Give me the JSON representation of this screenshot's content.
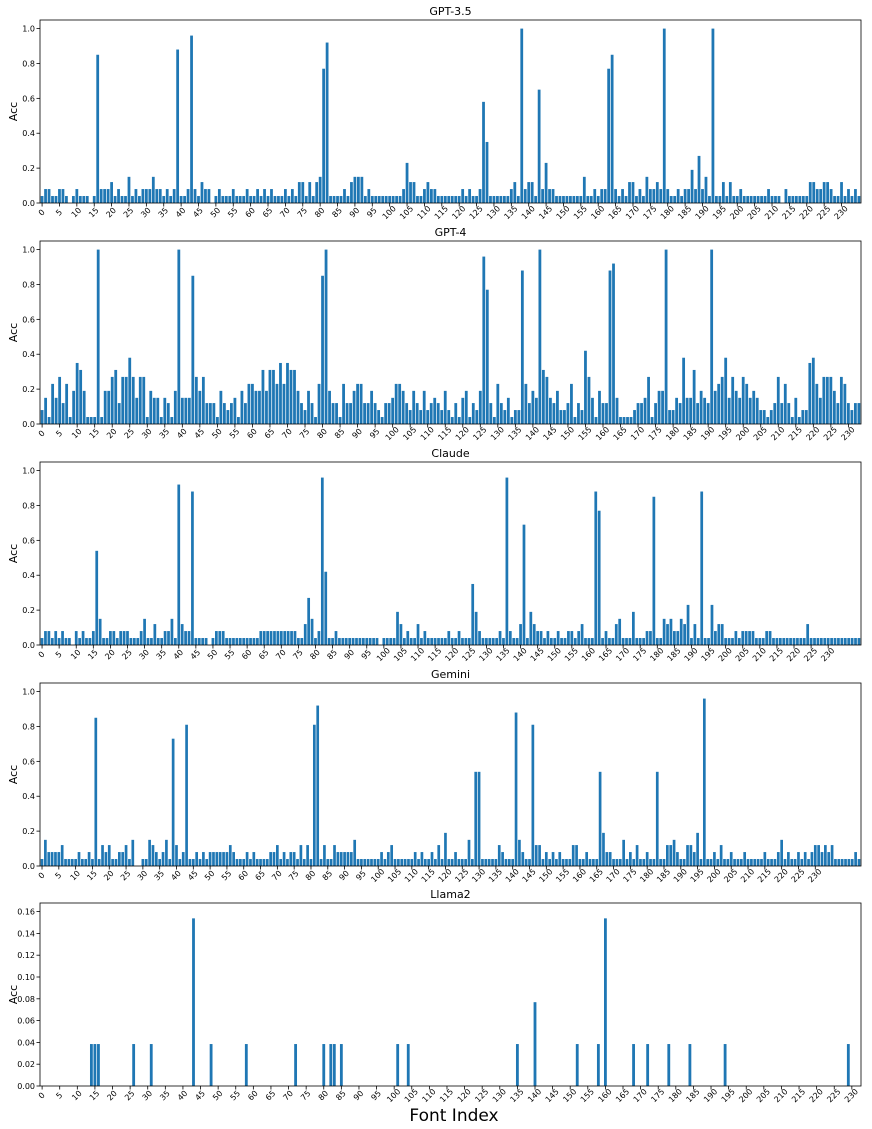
{
  "figure": {
    "xlabel": "Font Index",
    "bar_color": "#1f77b4",
    "xticks": [
      0,
      5,
      10,
      15,
      20,
      25,
      30,
      35,
      40,
      45,
      50,
      55,
      60,
      65,
      70,
      75,
      80,
      85,
      90,
      95,
      100,
      105,
      110,
      115,
      120,
      125,
      130,
      135,
      140,
      145,
      150,
      155,
      160,
      165,
      170,
      175,
      180,
      185,
      190,
      195,
      200,
      205,
      210,
      215,
      220,
      225,
      230
    ]
  },
  "chart_data": [
    {
      "type": "bar",
      "title": "GPT-3.5",
      "ylabel": "Acc",
      "ylim": [
        0,
        1.0
      ],
      "yticks": [
        0.0,
        0.2,
        0.4,
        0.6,
        0.8,
        1.0
      ],
      "x_start": 0,
      "values": [
        0.04,
        0.08,
        0.08,
        0.04,
        0.04,
        0.08,
        0.08,
        0.04,
        0,
        0.04,
        0.08,
        0.04,
        0.04,
        0.04,
        0,
        0.04,
        0.85,
        0.08,
        0.08,
        0.08,
        0.12,
        0.04,
        0.08,
        0.04,
        0.04,
        0.15,
        0.04,
        0.08,
        0.04,
        0.08,
        0.08,
        0.08,
        0.15,
        0.08,
        0.08,
        0.04,
        0.08,
        0.04,
        0.08,
        0.88,
        0.04,
        0.04,
        0.08,
        0.96,
        0.08,
        0.04,
        0.12,
        0.08,
        0.08,
        0,
        0.04,
        0.08,
        0.04,
        0.04,
        0.04,
        0.08,
        0.04,
        0.04,
        0.04,
        0.08,
        0.04,
        0.04,
        0.08,
        0.04,
        0.08,
        0.04,
        0.08,
        0.04,
        0.04,
        0.04,
        0.08,
        0.04,
        0.08,
        0.04,
        0.12,
        0.12,
        0.04,
        0.12,
        0.04,
        0.12,
        0.15,
        0.77,
        0.92,
        0.04,
        0.04,
        0.04,
        0.04,
        0.08,
        0.04,
        0.12,
        0.15,
        0.15,
        0.15,
        0.04,
        0.08,
        0.04,
        0.04,
        0.04,
        0.04,
        0.04,
        0.04,
        0.04,
        0.04,
        0.04,
        0.08,
        0.23,
        0.12,
        0.12,
        0.04,
        0.04,
        0.08,
        0.12,
        0.08,
        0.08,
        0.04,
        0.04,
        0.04,
        0.04,
        0.04,
        0.04,
        0.04,
        0.08,
        0.04,
        0.08,
        0.04,
        0.04,
        0.08,
        0.58,
        0.35,
        0.04,
        0.04,
        0.04,
        0.04,
        0.04,
        0.04,
        0.08,
        0.12,
        0.04,
        1.0,
        0.08,
        0.12,
        0.12,
        0.04,
        0.65,
        0.08,
        0.23,
        0.08,
        0.08,
        0.04,
        0.04,
        0.04,
        0.04,
        0.04,
        0.04,
        0.04,
        0.04,
        0.15,
        0.04,
        0.04,
        0.08,
        0.04,
        0.08,
        0.08,
        0.77,
        0.85,
        0.08,
        0.04,
        0.08,
        0.04,
        0.12,
        0.12,
        0.04,
        0.08,
        0.04,
        0.15,
        0.08,
        0.08,
        0.12,
        0.08,
        1.0,
        0.08,
        0.04,
        0.04,
        0.08,
        0.04,
        0.08,
        0.08,
        0.19,
        0.08,
        0.27,
        0.08,
        0.15,
        0.04,
        1.0,
        0.04,
        0.04,
        0.12,
        0.04,
        0.12,
        0.04,
        0.04,
        0.08,
        0.04,
        0.04,
        0.04,
        0.04,
        0.04,
        0.04,
        0.04,
        0.08,
        0.04,
        0.04,
        0.04,
        0,
        0.08,
        0.04,
        0.04,
        0.04,
        0.04,
        0.04,
        0.04,
        0.12,
        0.12,
        0.08,
        0.08,
        0.12,
        0.12,
        0.08,
        0.04,
        0.04,
        0.12,
        0.04,
        0.08,
        0.04,
        0.08,
        0.04
      ]
    },
    {
      "type": "bar",
      "title": "GPT-4",
      "ylabel": "Acc",
      "ylim": [
        0,
        1.0
      ],
      "yticks": [
        0.0,
        0.2,
        0.4,
        0.6,
        0.8,
        1.0
      ],
      "x_start": 0,
      "values": [
        0.08,
        0.15,
        0.04,
        0.23,
        0.15,
        0.27,
        0.12,
        0.23,
        0.04,
        0.19,
        0.35,
        0.31,
        0.19,
        0.04,
        0.04,
        0.04,
        1.0,
        0.04,
        0.19,
        0.19,
        0.27,
        0.31,
        0.12,
        0.27,
        0.27,
        0.38,
        0.27,
        0.15,
        0.27,
        0.27,
        0.04,
        0.19,
        0.15,
        0.15,
        0.04,
        0.15,
        0.12,
        0.04,
        0.19,
        1.0,
        0.15,
        0.15,
        0.15,
        0.85,
        0.27,
        0.19,
        0.27,
        0.12,
        0.12,
        0.12,
        0.04,
        0.19,
        0.12,
        0.08,
        0.12,
        0.15,
        0.04,
        0.19,
        0.12,
        0.23,
        0.23,
        0.19,
        0.19,
        0.31,
        0.19,
        0.31,
        0.31,
        0.23,
        0.35,
        0.23,
        0.35,
        0.31,
        0.31,
        0.19,
        0.12,
        0.08,
        0.19,
        0.12,
        0.04,
        0.23,
        0.85,
        1.0,
        0.19,
        0.12,
        0.12,
        0.04,
        0.23,
        0.12,
        0.12,
        0.19,
        0.23,
        0.23,
        0.12,
        0.12,
        0.19,
        0.12,
        0.08,
        0.04,
        0.12,
        0.12,
        0.15,
        0.23,
        0.23,
        0.19,
        0.12,
        0.08,
        0.19,
        0.12,
        0.08,
        0.19,
        0.08,
        0.12,
        0.15,
        0.12,
        0.08,
        0.19,
        0.08,
        0.04,
        0.12,
        0.04,
        0.15,
        0.19,
        0.04,
        0.12,
        0.08,
        0.19,
        0.96,
        0.77,
        0.12,
        0.04,
        0.23,
        0.12,
        0.08,
        0.15,
        0.04,
        0.08,
        0.08,
        0.88,
        0.23,
        0.12,
        0.19,
        0.15,
        1.0,
        0.31,
        0.27,
        0.15,
        0.12,
        0.19,
        0.08,
        0.08,
        0.12,
        0.23,
        0.04,
        0.12,
        0.08,
        0.42,
        0.27,
        0.15,
        0.04,
        0.19,
        0.12,
        0.12,
        0.88,
        0.92,
        0.15,
        0.04,
        0.04,
        0.04,
        0.04,
        0.08,
        0.12,
        0.12,
        0.15,
        0.27,
        0.04,
        0.12,
        0.19,
        0.19,
        1.0,
        0.08,
        0.08,
        0.15,
        0.12,
        0.38,
        0.15,
        0.15,
        0.31,
        0.12,
        0.19,
        0.15,
        0.12,
        1.0,
        0.19,
        0.23,
        0.27,
        0.38,
        0.15,
        0.27,
        0.19,
        0.15,
        0.27,
        0.23,
        0.15,
        0.19,
        0.15,
        0.08,
        0.08,
        0.04,
        0.08,
        0.12,
        0.27,
        0.12,
        0.23,
        0.12,
        0.04,
        0.15,
        0.04,
        0.08,
        0.08,
        0.35,
        0.38,
        0.23,
        0.15,
        0.27,
        0.27,
        0.27,
        0.19,
        0.12,
        0.27,
        0.23,
        0.12,
        0.08,
        0.12,
        0.12
      ]
    },
    {
      "type": "bar",
      "title": "Claude",
      "ylabel": "Acc",
      "ylim": [
        0,
        1.0
      ],
      "yticks": [
        0.0,
        0.2,
        0.4,
        0.6,
        0.8,
        1.0
      ],
      "x_start": 0,
      "values": [
        0.04,
        0.08,
        0.08,
        0.04,
        0.08,
        0.04,
        0.08,
        0.04,
        0.04,
        0,
        0.08,
        0.04,
        0.08,
        0.04,
        0.04,
        0.08,
        0.54,
        0.15,
        0.04,
        0.04,
        0.08,
        0.08,
        0.04,
        0.08,
        0.08,
        0.08,
        0.04,
        0.04,
        0.04,
        0.08,
        0.15,
        0.04,
        0.04,
        0.12,
        0.04,
        0.04,
        0.08,
        0.08,
        0.15,
        0.04,
        0.92,
        0.12,
        0.08,
        0.08,
        0.88,
        0.04,
        0.04,
        0.04,
        0.04,
        0,
        0.04,
        0.08,
        0.08,
        0.08,
        0.04,
        0.04,
        0.04,
        0.04,
        0.04,
        0.04,
        0.04,
        0.04,
        0.04,
        0.04,
        0.08,
        0.08,
        0.08,
        0.08,
        0.08,
        0.08,
        0.08,
        0.08,
        0.08,
        0.08,
        0.08,
        0.04,
        0.04,
        0.12,
        0.27,
        0.15,
        0.04,
        0.08,
        0.96,
        0.42,
        0.04,
        0.04,
        0.08,
        0.04,
        0.04,
        0.04,
        0.04,
        0.04,
        0.04,
        0.04,
        0.04,
        0.04,
        0.04,
        0.04,
        0.04,
        0,
        0.04,
        0.04,
        0.04,
        0.04,
        0.19,
        0.12,
        0.04,
        0.08,
        0.04,
        0.04,
        0.12,
        0.04,
        0.08,
        0.04,
        0.04,
        0.04,
        0.04,
        0.04,
        0.04,
        0.08,
        0.04,
        0.04,
        0.08,
        0.04,
        0.04,
        0.04,
        0.35,
        0.19,
        0.08,
        0.04,
        0.04,
        0.04,
        0.04,
        0.04,
        0.08,
        0.04,
        0.96,
        0.08,
        0.04,
        0.04,
        0.12,
        0.69,
        0.04,
        0.19,
        0.12,
        0.08,
        0.08,
        0.04,
        0.08,
        0.04,
        0.04,
        0.08,
        0.04,
        0.04,
        0.08,
        0.08,
        0.04,
        0.08,
        0.12,
        0.04,
        0.04,
        0.04,
        0.88,
        0.77,
        0.04,
        0.08,
        0.04,
        0.04,
        0.12,
        0.15,
        0.04,
        0.04,
        0.04,
        0.19,
        0.04,
        0.04,
        0.04,
        0.08,
        0.08,
        0.85,
        0.04,
        0.04,
        0.15,
        0.12,
        0.15,
        0.08,
        0.08,
        0.15,
        0.12,
        0.23,
        0.04,
        0.12,
        0.04,
        0.88,
        0.04,
        0.04,
        0.23,
        0.08,
        0.12,
        0.12,
        0.04,
        0.04,
        0.04,
        0.08,
        0.04,
        0.08,
        0.08,
        0.08,
        0.08,
        0.04,
        0.04,
        0.04,
        0.08,
        0.08,
        0.04,
        0.04,
        0.04,
        0.04,
        0.04,
        0.04,
        0.04,
        0.04,
        0.04,
        0.04,
        0.12,
        0.04,
        0.04,
        0.04,
        0.04,
        0.04,
        0.04,
        0.04,
        0.04,
        0.04,
        0.04,
        0.04,
        0.04,
        0.04,
        0.04,
        0.04
      ]
    },
    {
      "type": "bar",
      "title": "Gemini",
      "ylabel": "Acc",
      "ylim": [
        0,
        1.0
      ],
      "yticks": [
        0.0,
        0.2,
        0.4,
        0.6,
        0.8,
        1.0
      ],
      "x_start": 0,
      "values": [
        0.04,
        0.15,
        0.08,
        0.08,
        0.08,
        0.08,
        0.12,
        0.04,
        0.04,
        0.04,
        0.04,
        0.08,
        0.04,
        0.04,
        0.08,
        0.04,
        0.85,
        0.04,
        0.12,
        0.08,
        0.12,
        0.04,
        0.04,
        0.08,
        0.08,
        0.12,
        0.04,
        0.15,
        0,
        0,
        0.04,
        0.04,
        0.15,
        0.12,
        0.08,
        0.04,
        0.08,
        0.15,
        0.04,
        0.73,
        0.12,
        0.04,
        0.08,
        0.81,
        0.04,
        0.04,
        0.08,
        0.04,
        0.08,
        0.04,
        0.08,
        0.08,
        0.08,
        0.08,
        0.08,
        0.08,
        0.12,
        0.08,
        0.04,
        0.04,
        0.04,
        0.08,
        0.04,
        0.08,
        0.04,
        0.04,
        0.04,
        0.04,
        0.08,
        0.08,
        0.12,
        0.04,
        0.08,
        0.04,
        0.08,
        0.08,
        0.04,
        0.12,
        0.04,
        0.12,
        0.04,
        0.81,
        0.92,
        0.04,
        0.12,
        0.04,
        0.04,
        0.12,
        0.08,
        0.08,
        0.08,
        0.08,
        0.08,
        0.15,
        0.04,
        0.04,
        0.04,
        0.04,
        0.04,
        0.04,
        0.04,
        0.08,
        0.04,
        0.08,
        0.12,
        0.04,
        0.04,
        0.04,
        0.04,
        0.04,
        0.04,
        0.08,
        0.04,
        0.08,
        0.04,
        0.04,
        0.08,
        0.04,
        0.12,
        0.04,
        0.19,
        0.04,
        0.04,
        0.08,
        0.04,
        0.04,
        0.04,
        0.15,
        0.04,
        0.54,
        0.54,
        0.04,
        0.04,
        0.04,
        0.04,
        0.04,
        0.12,
        0.08,
        0.04,
        0.04,
        0.04,
        0.88,
        0.15,
        0.08,
        0.04,
        0.04,
        0.81,
        0.12,
        0.12,
        0.04,
        0.08,
        0.04,
        0.08,
        0.04,
        0.08,
        0.04,
        0.04,
        0.04,
        0.12,
        0.12,
        0.04,
        0.04,
        0.08,
        0.04,
        0.04,
        0.04,
        0.54,
        0.19,
        0.08,
        0.08,
        0.04,
        0.04,
        0.04,
        0.15,
        0.04,
        0.08,
        0.04,
        0.12,
        0.04,
        0.04,
        0.08,
        0.04,
        0.04,
        0.54,
        0.04,
        0.04,
        0.12,
        0.12,
        0.15,
        0.08,
        0.04,
        0.04,
        0.12,
        0.12,
        0.08,
        0.19,
        0.04,
        0.96,
        0.04,
        0.04,
        0.08,
        0.04,
        0.12,
        0.04,
        0.04,
        0.08,
        0.04,
        0.04,
        0.04,
        0.08,
        0.04,
        0.04,
        0.04,
        0.04,
        0.04,
        0.08,
        0.04,
        0.04,
        0.04,
        0.08,
        0.15,
        0.04,
        0.08,
        0.04,
        0.04,
        0.08,
        0.04,
        0.08,
        0.04,
        0.08,
        0.12,
        0.12,
        0.08,
        0.12,
        0.08,
        0.12,
        0.04,
        0.04,
        0.04,
        0.04,
        0.04,
        0.04,
        0.08,
        0.04
      ]
    },
    {
      "type": "bar",
      "title": "Llama2",
      "ylabel": "Acc",
      "ylim": [
        0,
        0.16
      ],
      "yticks": [
        0.0,
        0.02,
        0.04,
        0.06,
        0.08,
        0.1,
        0.12,
        0.14,
        0.16
      ],
      "x_start": 0,
      "bars": [
        {
          "x": 14,
          "y": 0.0385
        },
        {
          "x": 15,
          "y": 0.0385
        },
        {
          "x": 16,
          "y": 0.0385
        },
        {
          "x": 26,
          "y": 0.0385
        },
        {
          "x": 31,
          "y": 0.0385
        },
        {
          "x": 43,
          "y": 0.1538
        },
        {
          "x": 48,
          "y": 0.0385
        },
        {
          "x": 58,
          "y": 0.0385
        },
        {
          "x": 72,
          "y": 0.0385
        },
        {
          "x": 80,
          "y": 0.0385
        },
        {
          "x": 82,
          "y": 0.0385
        },
        {
          "x": 83,
          "y": 0.0385
        },
        {
          "x": 85,
          "y": 0.0385
        },
        {
          "x": 101,
          "y": 0.0385
        },
        {
          "x": 104,
          "y": 0.0385
        },
        {
          "x": 135,
          "y": 0.0385
        },
        {
          "x": 140,
          "y": 0.0769
        },
        {
          "x": 152,
          "y": 0.0385
        },
        {
          "x": 158,
          "y": 0.0385
        },
        {
          "x": 160,
          "y": 0.1538
        },
        {
          "x": 168,
          "y": 0.0385
        },
        {
          "x": 172,
          "y": 0.0385
        },
        {
          "x": 178,
          "y": 0.0385
        },
        {
          "x": 184,
          "y": 0.0385
        },
        {
          "x": 194,
          "y": 0.0385
        },
        {
          "x": 229,
          "y": 0.0385
        }
      ],
      "n_categories": 233
    }
  ]
}
